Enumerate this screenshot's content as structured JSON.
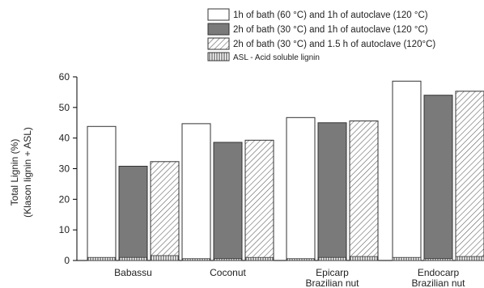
{
  "chart_data": {
    "type": "bar",
    "categories": [
      [
        "Babassu"
      ],
      [
        "Coconut"
      ],
      [
        "Epicarp",
        "Brazilian nut"
      ],
      [
        "Endocarp",
        "Brazilian nut"
      ]
    ],
    "series": [
      {
        "name": "1h of bath (60 °C) and 1h of autoclave (120 °C)",
        "values": [
          43.8,
          44.7,
          46.7,
          58.6
        ],
        "asl": [
          1.0,
          0.6,
          0.6,
          1.0
        ],
        "fill": "white"
      },
      {
        "name": "2h of bath (30 °C) and 1h of autoclave (120 °C)",
        "values": [
          30.8,
          38.6,
          45.0,
          54.0
        ],
        "asl": [
          1.0,
          0.6,
          1.0,
          0.6
        ],
        "fill": "gray"
      },
      {
        "name": "2h of bath (30 °C) and 1.5 h of autoclave (120°C)",
        "values": [
          32.3,
          39.3,
          45.6,
          55.3
        ],
        "asl": [
          1.6,
          1.0,
          1.3,
          1.3
        ],
        "fill": "hatch"
      }
    ],
    "asl_legend": "ASL - Acid soluble lignin",
    "ylabel_lines": [
      "Total Lignin  (%)",
      "(Klason lignin + ASL)"
    ],
    "ylim": [
      0,
      60
    ],
    "yticks": [
      0,
      10,
      20,
      30,
      40,
      50,
      60
    ],
    "grid": false,
    "legend_position": "top-right",
    "colors": {
      "white_bar": "#ffffff",
      "gray_bar": "#7a7a7a",
      "outline": "#333333"
    }
  }
}
